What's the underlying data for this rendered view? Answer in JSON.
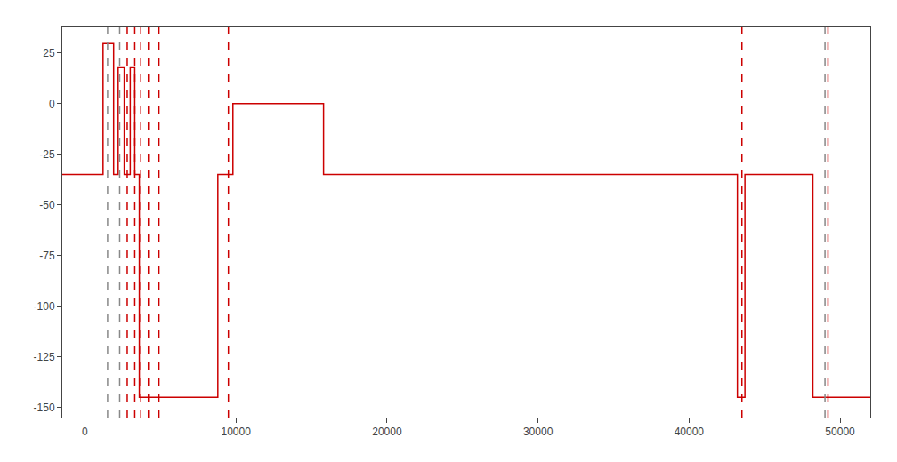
{
  "chart_data": {
    "type": "line",
    "x": [
      -1500,
      1200,
      1200,
      1900,
      1900,
      2200,
      2200,
      2600,
      2600,
      3000,
      3000,
      3300,
      3300,
      3600,
      3600,
      5500,
      5500,
      8800,
      8800,
      9800,
      9800,
      15800,
      15800,
      43200,
      43200,
      43700,
      43700,
      48200,
      48200,
      52000
    ],
    "values": [
      -35,
      -35,
      30,
      30,
      -35,
      -35,
      18,
      18,
      -35,
      -35,
      18,
      18,
      -35,
      -35,
      -145,
      -145,
      -145,
      -145,
      -35,
      -35,
      0,
      0,
      -35,
      -35,
      -145,
      -145,
      -35,
      -35,
      -145,
      -145
    ],
    "color": "#cc0000",
    "vlines": [
      {
        "color": "#888888",
        "line_style": "dashed",
        "values": [
          1500,
          2300,
          49000
        ]
      },
      {
        "color": "#cc0000",
        "line_style": "dashed",
        "values": [
          2800,
          3300,
          3700,
          4200,
          4900,
          9500,
          43500,
          49200
        ]
      }
    ],
    "xlim": [
      -1500,
      52000
    ],
    "ylim": [
      -155,
      38
    ],
    "xticks": [
      0,
      10000,
      20000,
      30000,
      40000,
      50000
    ],
    "yticks": [
      -150,
      -125,
      -100,
      -75,
      -50,
      -25,
      0,
      25
    ],
    "grid": false
  }
}
